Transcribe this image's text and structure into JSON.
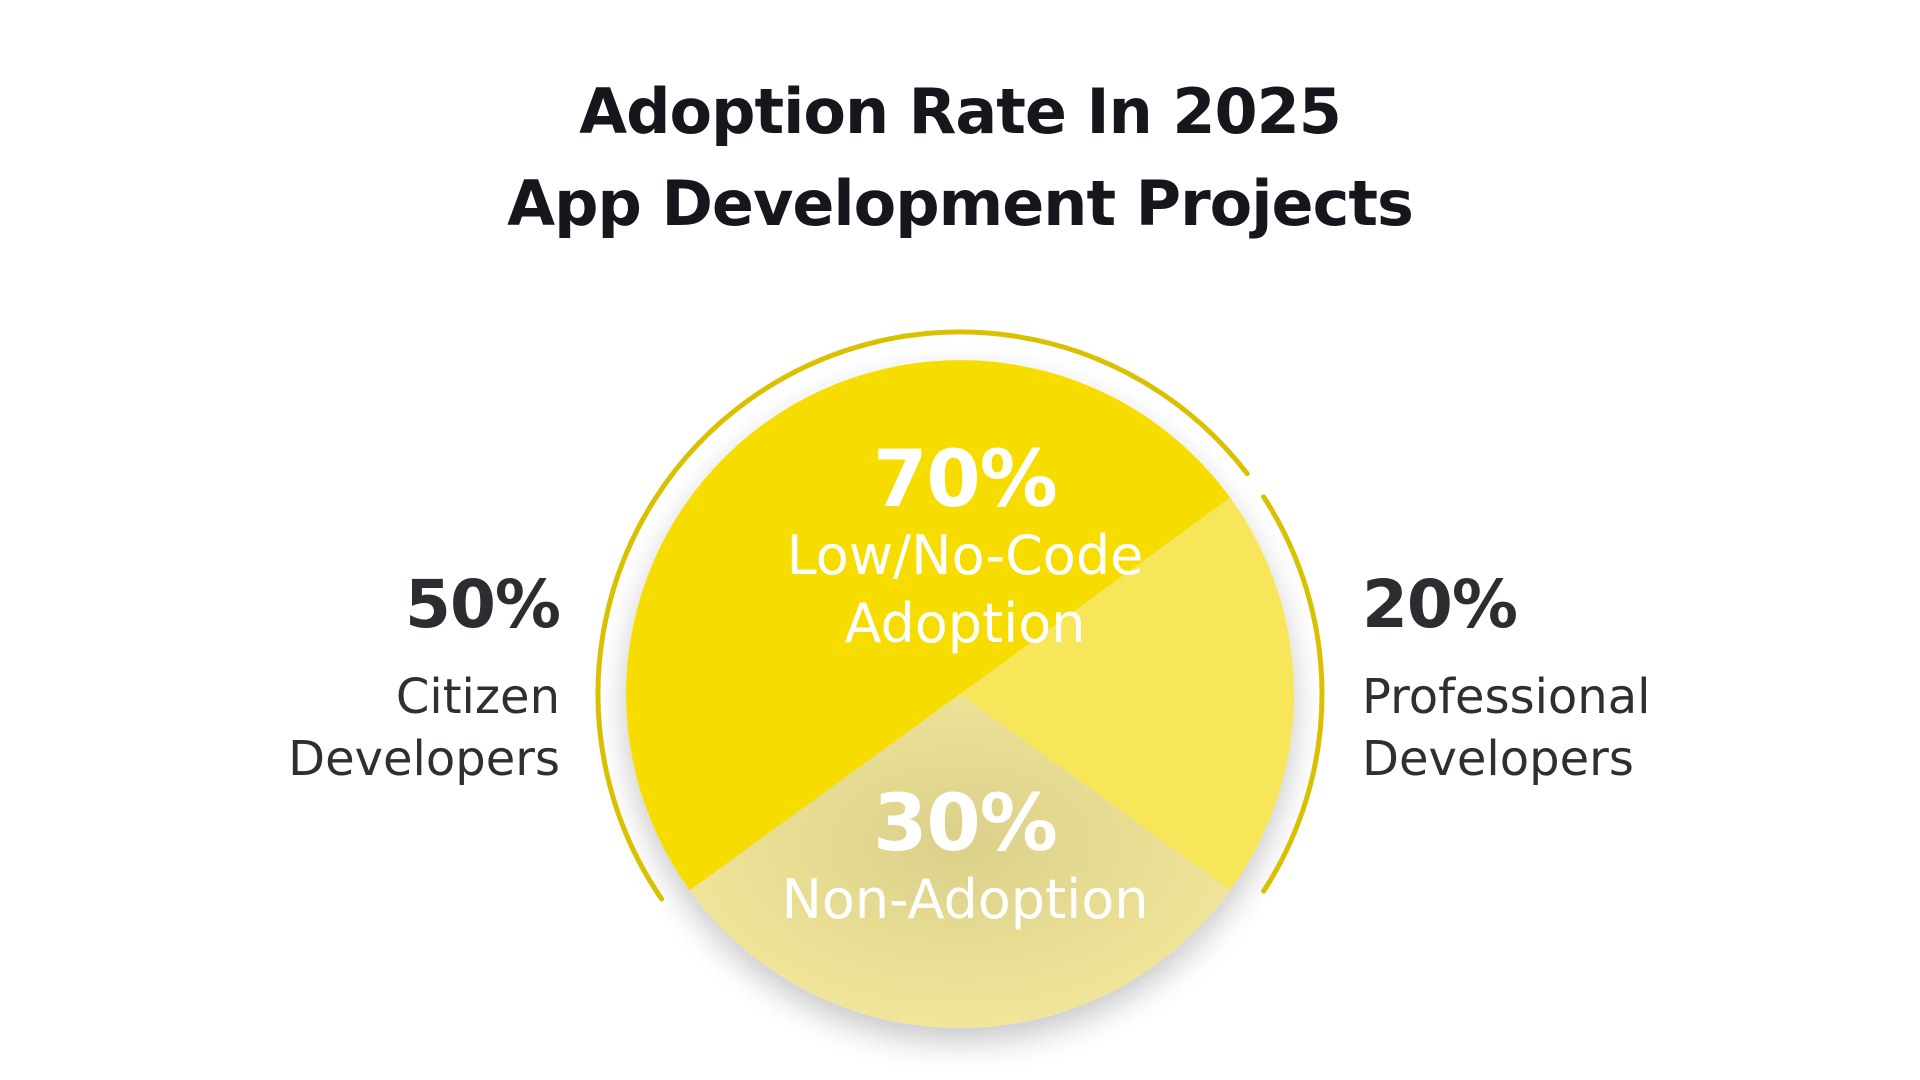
{
  "title": {
    "line1": "Adoption Rate In 2025",
    "line2": "App Development Projects"
  },
  "colors": {
    "adoption": "#f7dc00",
    "professional": "#f7e55a",
    "non_adoption": "#f3e79a",
    "arc": "#d9c100",
    "text_dark": "#2c2d31",
    "text_light": "#ffffff"
  },
  "chart_data": {
    "type": "pie",
    "title": "Adoption Rate In 2025 App Development Projects",
    "slices": [
      {
        "label": "Low/No-Code Adoption",
        "value": 70
      },
      {
        "label": "Non-Adoption",
        "value": 30
      }
    ],
    "breakdown": [
      {
        "label": "Citizen Developers",
        "value": 50
      },
      {
        "label": "Professional Developers",
        "value": 20
      }
    ],
    "labels": {
      "adoption_pct": "70%",
      "adoption_line1": "Low/No-Code",
      "adoption_line2": "Adoption",
      "non_adoption_pct": "30%",
      "non_adoption_label": "Non-Adoption",
      "citizen_pct": "50%",
      "citizen_line1": "Citizen",
      "citizen_line2": "Developers",
      "professional_pct": "20%",
      "professional_line1": "Professional",
      "professional_line2": "Developers"
    }
  }
}
